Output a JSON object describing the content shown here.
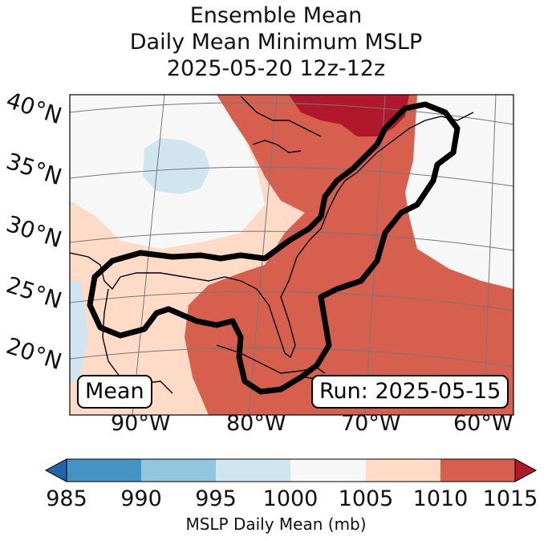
{
  "title": {
    "line1": "Ensemble Mean",
    "line2": "Daily Mean Minimum MSLP",
    "line3": "2025-05-20 12z-12z"
  },
  "map": {
    "lat_labels": [
      "40°N",
      "35°N",
      "30°N",
      "25°N",
      "20°N"
    ],
    "lon_labels": [
      "90°W",
      "80°W",
      "70°W",
      "60°W"
    ],
    "legend_label": "Mean",
    "run_label": "Run: 2025-05-15"
  },
  "colorbar": {
    "ticks": [
      "985",
      "990",
      "995",
      "1000",
      "1005",
      "1010",
      "1015"
    ],
    "label": "MSLP Daily Mean (mb)",
    "colors": {
      "lt985": "#2166ac",
      "985_990": "#4393c3",
      "990_995": "#92c5de",
      "995_1000": "#d1e5f0",
      "1000_1005": "#f7f7f7",
      "1005_1010": "#fddbc7",
      "1010_1015": "#d6604d",
      "gt1015": "#b2182b"
    }
  }
}
